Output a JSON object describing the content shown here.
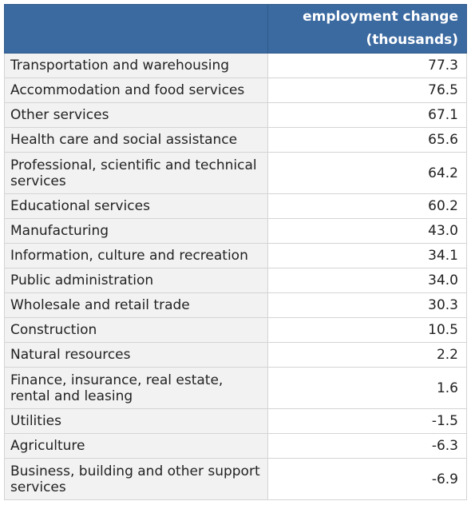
{
  "chart_data": {
    "type": "table",
    "columns": [
      "",
      "employment change (thousands)"
    ],
    "header": {
      "label": "",
      "value_line1": "employment change",
      "value_line2": "(thousands)"
    },
    "rows": [
      {
        "label": "Transportation and warehousing",
        "value": "77.3"
      },
      {
        "label": "Accommodation and food services",
        "value": "76.5"
      },
      {
        "label": "Other services",
        "value": "67.1"
      },
      {
        "label": "Health care and social assistance",
        "value": "65.6"
      },
      {
        "label": "Professional, scientific and technical services",
        "value": "64.2"
      },
      {
        "label": "Educational services",
        "value": "60.2"
      },
      {
        "label": "Manufacturing",
        "value": "43.0"
      },
      {
        "label": "Information, culture and recreation",
        "value": "34.1"
      },
      {
        "label": "Public administration",
        "value": "34.0"
      },
      {
        "label": "Wholesale and retail trade",
        "value": "30.3"
      },
      {
        "label": "Construction",
        "value": "10.5"
      },
      {
        "label": "Natural resources",
        "value": "2.2"
      },
      {
        "label": "Finance, insurance, real estate, rental and leasing",
        "value": "1.6"
      },
      {
        "label": "Utilities",
        "value": "-1.5"
      },
      {
        "label": "Agriculture",
        "value": "-6.3"
      },
      {
        "label": "Business, building and other support services",
        "value": "-6.9"
      }
    ]
  },
  "colors": {
    "header_bg": "#3b6aa0",
    "header_text": "#ffffff",
    "label_bg": "#f2f2f2",
    "value_bg": "#ffffff",
    "border": "#d4d4d4"
  }
}
